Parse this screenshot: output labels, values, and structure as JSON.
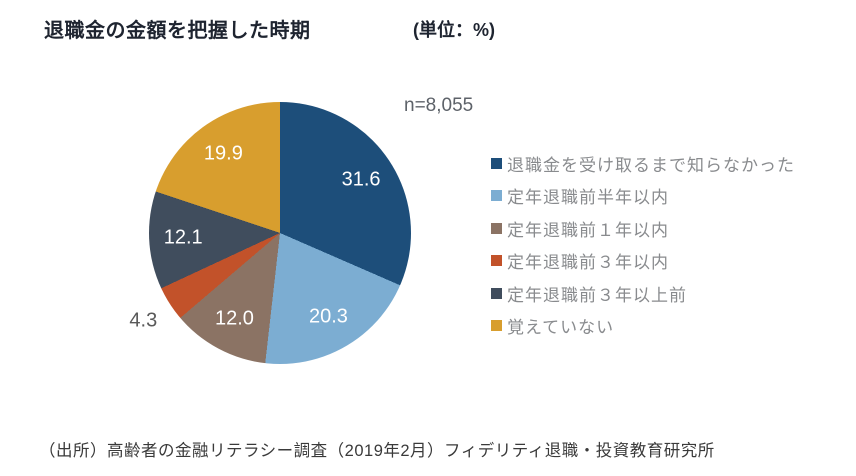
{
  "header": {
    "title": "退職金の金額を把握した時期",
    "unit_label": "(単位：%)"
  },
  "sample_label": "n=8,055",
  "source": "（出所）高齢者の金融リテラシー調査（2019年2月）フィデリティ退職・投資教育研究所",
  "chart_data": {
    "type": "pie",
    "title": "退職金の金額を把握した時期",
    "unit": "%",
    "n": "8,055",
    "start_angle_deg": 0,
    "direction": "clockwise",
    "legend_position": "right",
    "categories": [
      "退職金を受け取るまで知らなかった",
      "定年退職前半年以内",
      "定年退職前１年以内",
      "定年退職前３年以内",
      "定年退職前３年以上前",
      "覚えていない"
    ],
    "values": [
      31.6,
      20.3,
      12.0,
      4.3,
      12.1,
      19.9
    ],
    "value_labels": [
      "31.6",
      "20.3",
      "12.0",
      "4.3",
      "12.1",
      "19.9"
    ],
    "label_placement": [
      "inside",
      "inside",
      "inside",
      "outside",
      "inside",
      "inside"
    ],
    "colors": [
      "#1d4e7a",
      "#7cadd2",
      "#8b7364",
      "#c2522a",
      "#404d5d",
      "#d89e2e"
    ],
    "label_colors": {
      "inside": "#ffffff",
      "outside": "#595959"
    }
  }
}
